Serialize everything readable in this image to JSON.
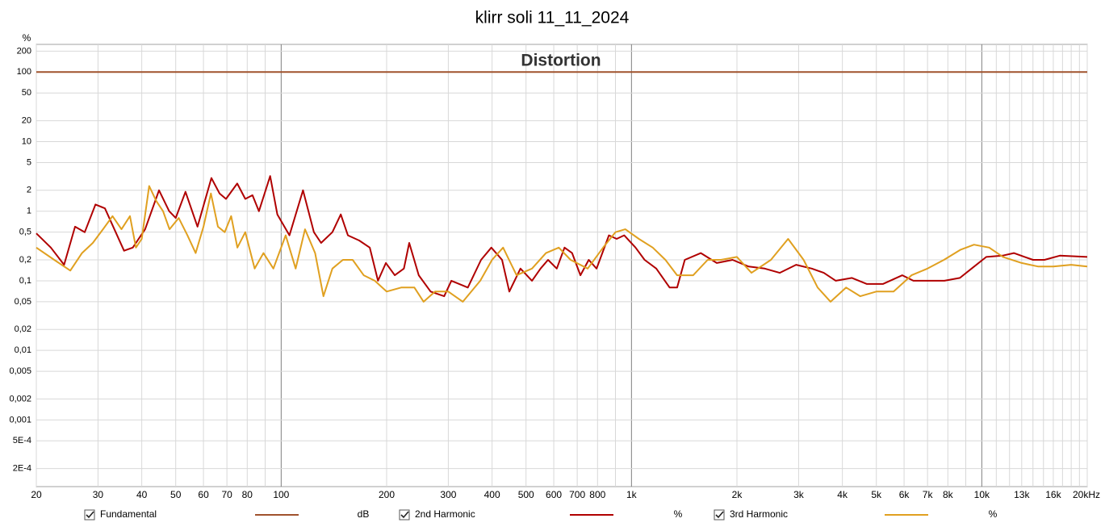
{
  "chart_data": {
    "type": "line",
    "title": "klirr soli 11_11_2024",
    "plot_title": "Distortion",
    "y_unit": "%",
    "xlog": true,
    "ylog": true,
    "grid": true,
    "xlim": [
      20,
      20000
    ],
    "ylim": [
      0.00011,
      250
    ],
    "xticks": [
      20,
      30,
      40,
      50,
      60,
      70,
      80,
      100,
      200,
      300,
      400,
      500,
      600,
      700,
      800,
      {
        "value": 1000,
        "label": "1k"
      },
      {
        "value": 2000,
        "label": "2k"
      },
      {
        "value": 3000,
        "label": "3k"
      },
      {
        "value": 4000,
        "label": "4k"
      },
      {
        "value": 5000,
        "label": "5k"
      },
      {
        "value": 6000,
        "label": "6k"
      },
      {
        "value": 7000,
        "label": "7k"
      },
      {
        "value": 8000,
        "label": "8k"
      },
      {
        "value": 10000,
        "label": "10k"
      },
      {
        "value": 13000,
        "label": "13k"
      },
      {
        "value": 16000,
        "label": "16k"
      },
      {
        "value": 20000,
        "label": "20kHz"
      }
    ],
    "xminorticks": [
      90,
      900,
      9000,
      11000,
      12000,
      14000,
      15000,
      17000,
      18000,
      19000
    ],
    "yticks": [
      200,
      100,
      50,
      20,
      10,
      5,
      2,
      1,
      {
        "value": 0.5,
        "label": "0,5"
      },
      {
        "value": 0.2,
        "label": "0,2"
      },
      {
        "value": 0.1,
        "label": "0,1"
      },
      {
        "value": 0.05,
        "label": "0,05"
      },
      {
        "value": 0.02,
        "label": "0,02"
      },
      {
        "value": 0.01,
        "label": "0,01"
      },
      {
        "value": 0.005,
        "label": "0,005"
      },
      {
        "value": 0.002,
        "label": "0,002"
      },
      {
        "value": 0.001,
        "label": "0,001"
      },
      {
        "value": 0.0005,
        "label": "5E-4"
      },
      {
        "value": 0.0002,
        "label": "2E-4"
      }
    ],
    "series": [
      {
        "name": "Fundamental",
        "unit": "dB",
        "checked": true,
        "color": "#a0522d",
        "x": [
          20,
          20000
        ],
        "values": [
          100,
          100
        ]
      },
      {
        "name": "2nd Harmonic",
        "unit": "%",
        "checked": true,
        "color": "#b00000",
        "x": [
          20,
          22,
          24,
          25.8,
          27.5,
          29.5,
          31.4,
          35.6,
          37.7,
          40.9,
          44.8,
          47.9,
          50,
          53.3,
          57.7,
          63.2,
          66.7,
          69.6,
          74.9,
          79,
          82.8,
          86.4,
          93,
          97.5,
          105.6,
          115.4,
          124,
          130,
          140,
          148,
          155,
          167,
          179,
          189,
          199,
          211,
          224,
          232,
          247,
          267,
          292,
          306,
          341,
          372,
          398,
          427,
          448,
          482,
          520,
          550,
          578,
          612,
          644,
          677,
          715,
          755,
          795,
          862,
          907,
          953,
          1027,
          1090,
          1177,
          1285,
          1350,
          1420,
          1578,
          1752,
          1943,
          2160,
          2400,
          2650,
          2950,
          3270,
          3540,
          3830,
          4260,
          4700,
          5220,
          5930,
          6380,
          7060,
          7820,
          8660,
          9350,
          10300,
          11450,
          12350,
          14000,
          15100,
          16700,
          20000
        ],
        "values": [
          0.48,
          0.3,
          0.17,
          0.6,
          0.5,
          1.25,
          1.1,
          0.27,
          0.3,
          0.55,
          2.0,
          1.0,
          0.8,
          1.9,
          0.6,
          3.0,
          1.8,
          1.5,
          2.5,
          1.5,
          1.7,
          1.0,
          3.2,
          0.9,
          0.45,
          2.0,
          0.5,
          0.35,
          0.5,
          0.9,
          0.45,
          0.38,
          0.3,
          0.1,
          0.18,
          0.12,
          0.15,
          0.35,
          0.12,
          0.07,
          0.06,
          0.1,
          0.08,
          0.2,
          0.3,
          0.2,
          0.07,
          0.15,
          0.1,
          0.15,
          0.2,
          0.15,
          0.3,
          0.25,
          0.12,
          0.2,
          0.15,
          0.45,
          0.4,
          0.45,
          0.3,
          0.2,
          0.15,
          0.08,
          0.08,
          0.2,
          0.25,
          0.18,
          0.2,
          0.16,
          0.15,
          0.13,
          0.17,
          0.15,
          0.13,
          0.1,
          0.11,
          0.09,
          0.09,
          0.12,
          0.1,
          0.1,
          0.1,
          0.11,
          0.15,
          0.22,
          0.23,
          0.25,
          0.2,
          0.2,
          0.23,
          0.22
        ]
      },
      {
        "name": "3rd Harmonic",
        "unit": "%",
        "checked": true,
        "color": "#e0a020",
        "x": [
          20,
          22.5,
          25,
          27,
          29,
          31,
          33,
          35,
          37,
          38.5,
          40,
          42,
          44,
          46,
          48,
          51,
          54,
          57,
          60,
          63,
          66,
          69,
          72,
          75,
          79,
          84,
          89,
          95,
          103,
          110,
          117,
          125,
          132,
          140,
          150,
          160,
          172,
          185,
          200,
          220,
          240,
          255,
          275,
          300,
          330,
          370,
          400,
          430,
          470,
          520,
          570,
          620,
          670,
          750,
          830,
          900,
          960,
          1050,
          1150,
          1250,
          1350,
          1500,
          1650,
          1800,
          2000,
          2200,
          2500,
          2800,
          3100,
          3400,
          3700,
          4100,
          4500,
          5000,
          5600,
          6300,
          7000,
          7800,
          8700,
          9500,
          10500,
          11500,
          13000,
          14500,
          16000,
          18000,
          20000
        ],
        "values": [
          0.3,
          0.2,
          0.14,
          0.25,
          0.35,
          0.55,
          0.85,
          0.55,
          0.85,
          0.3,
          0.4,
          2.3,
          1.4,
          1.0,
          0.55,
          0.8,
          0.45,
          0.25,
          0.6,
          1.8,
          0.6,
          0.5,
          0.85,
          0.3,
          0.5,
          0.15,
          0.25,
          0.15,
          0.45,
          0.15,
          0.55,
          0.25,
          0.06,
          0.15,
          0.2,
          0.2,
          0.12,
          0.1,
          0.07,
          0.08,
          0.08,
          0.05,
          0.07,
          0.07,
          0.05,
          0.1,
          0.2,
          0.3,
          0.12,
          0.15,
          0.25,
          0.3,
          0.2,
          0.15,
          0.3,
          0.5,
          0.55,
          0.4,
          0.3,
          0.2,
          0.12,
          0.12,
          0.2,
          0.2,
          0.22,
          0.13,
          0.2,
          0.4,
          0.2,
          0.08,
          0.05,
          0.08,
          0.06,
          0.07,
          0.07,
          0.12,
          0.15,
          0.2,
          0.28,
          0.33,
          0.3,
          0.22,
          0.18,
          0.16,
          0.16,
          0.17,
          0.16
        ]
      }
    ]
  }
}
